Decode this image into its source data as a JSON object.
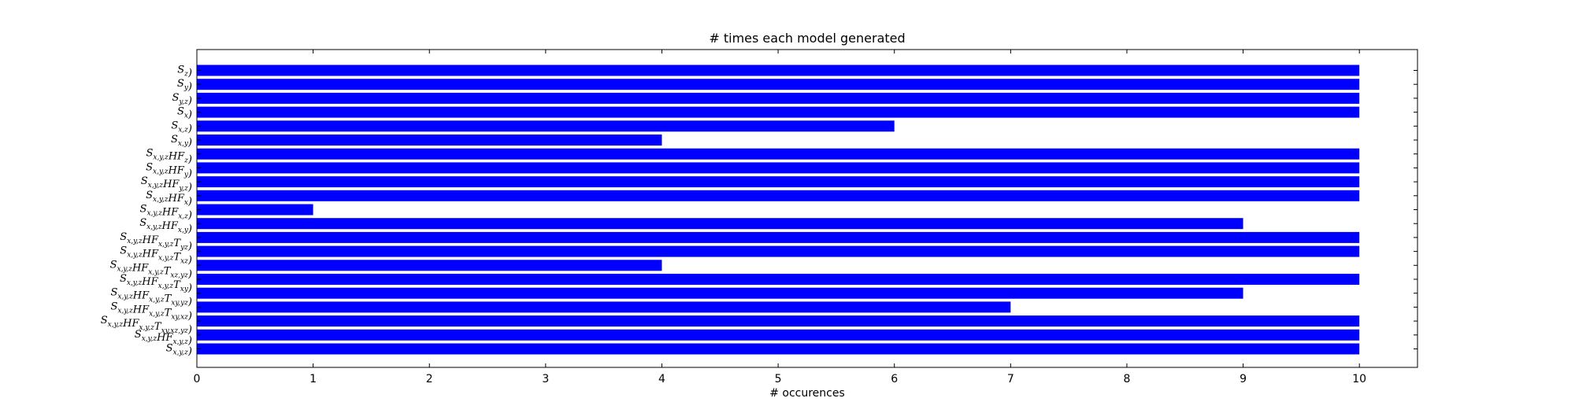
{
  "chart_data": {
    "type": "bar",
    "orientation": "horizontal",
    "title": "# times each model generated",
    "xlabel": "# occurences",
    "ylabel": "",
    "xlim": [
      0,
      10.5
    ],
    "xticks": [
      0,
      1,
      2,
      3,
      4,
      5,
      6,
      7,
      8,
      9,
      10
    ],
    "grid": false,
    "bar_color": "#0000ff",
    "categories": [
      "S_{z})",
      "S_{y})",
      "S_{y,z})",
      "S_{x})",
      "S_{x,z})",
      "S_{x,y})",
      "S_{x,y,z}HF_{z})",
      "S_{x,y,z}HF_{y})",
      "S_{x,y,z}HF_{y,z})",
      "S_{x,y,z}HF_{x})",
      "S_{x,y,z}HF_{x,z})",
      "S_{x,y,z}HF_{x,y})",
      "S_{x,y,z}HF_{x,y,z}T_{yz})",
      "S_{x,y,z}HF_{x,y,z}T_{xz})",
      "S_{x,y,z}HF_{x,y,z}T_{xz,yz})",
      "S_{x,y,z}HF_{x,y,z}T_{xy})",
      "S_{x,y,z}HF_{x,y,z}T_{xy,yz})",
      "S_{x,y,z}HF_{x,y,z}T_{xy,xz})",
      "S_{x,y,z}HF_{x,y,z}T_{xy,xz,yz})",
      "S_{x,y,z}HF_{x,y,z})",
      "S_{x,y,z})"
    ],
    "values": [
      10,
      10,
      10,
      10,
      6,
      4,
      10,
      10,
      10,
      10,
      1,
      9,
      10,
      10,
      4,
      10,
      9,
      7,
      10,
      10,
      10
    ]
  }
}
